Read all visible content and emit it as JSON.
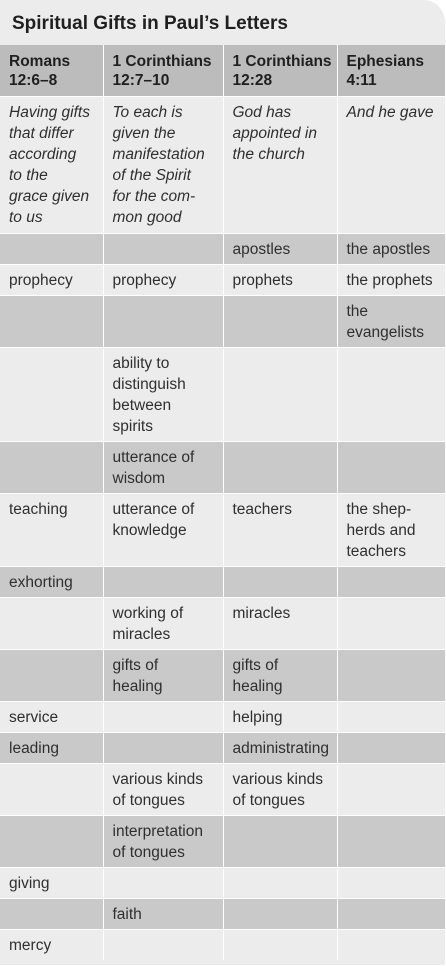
{
  "title": "Spiritual Gifts in Paul’s Letters",
  "headers": [
    [
      "Romans",
      "12:6–8"
    ],
    [
      "1 Corinthians",
      "12:7–10"
    ],
    [
      "1 Corinthians",
      "12:28"
    ],
    [
      "Ephesians",
      "4:11"
    ]
  ],
  "rows": [
    {
      "shade": "light",
      "style": "intro",
      "cells": [
        [
          "Having gifts",
          "that differ",
          "according",
          "to the",
          "grace given",
          "to us"
        ],
        [
          "To each is",
          "given the",
          "manifestation",
          "of the Spirit",
          "for the com-",
          "mon good"
        ],
        [
          "God has",
          "appointed in",
          "the church"
        ],
        [
          "And he gave"
        ]
      ]
    },
    {
      "shade": "dark",
      "cells": [
        [],
        [],
        [
          "apostles"
        ],
        [
          "the apostles"
        ]
      ]
    },
    {
      "shade": "light",
      "cells": [
        [
          "prophecy"
        ],
        [
          "prophecy"
        ],
        [
          "prophets"
        ],
        [
          "the prophets"
        ]
      ]
    },
    {
      "shade": "dark",
      "cells": [
        [],
        [],
        [],
        [
          "the",
          "evangelists"
        ]
      ]
    },
    {
      "shade": "light",
      "cells": [
        [],
        [
          "ability to",
          "distinguish",
          "between",
          "spirits"
        ],
        [],
        []
      ]
    },
    {
      "shade": "dark",
      "cells": [
        [],
        [
          "utterance of",
          "wisdom"
        ],
        [],
        []
      ]
    },
    {
      "shade": "light",
      "cells": [
        [
          "teaching"
        ],
        [
          "utterance of",
          "knowledge"
        ],
        [
          "teachers"
        ],
        [
          "the shep-",
          "herds and",
          "teachers"
        ]
      ]
    },
    {
      "shade": "dark",
      "cells": [
        [
          "exhorting"
        ],
        [],
        [],
        []
      ]
    },
    {
      "shade": "light",
      "cells": [
        [],
        [
          "working of",
          "miracles"
        ],
        [
          "miracles"
        ],
        []
      ]
    },
    {
      "shade": "dark",
      "cells": [
        [],
        [
          "gifts of",
          "healing"
        ],
        [
          "gifts of",
          "healing"
        ],
        []
      ]
    },
    {
      "shade": "light",
      "cells": [
        [
          "service"
        ],
        [],
        [
          "helping"
        ],
        []
      ]
    },
    {
      "shade": "dark",
      "cells": [
        [
          "leading"
        ],
        [],
        [
          "administrating"
        ],
        []
      ]
    },
    {
      "shade": "light",
      "cells": [
        [],
        [
          "various kinds",
          "of tongues"
        ],
        [
          "various kinds",
          "of tongues"
        ],
        []
      ]
    },
    {
      "shade": "dark",
      "cells": [
        [],
        [
          "interpretation",
          "of tongues"
        ],
        [],
        []
      ]
    },
    {
      "shade": "light",
      "cells": [
        [
          "giving"
        ],
        [],
        [],
        []
      ]
    },
    {
      "shade": "dark",
      "cells": [
        [],
        [
          "faith"
        ],
        [],
        []
      ]
    },
    {
      "shade": "light",
      "cells": [
        [
          "mercy"
        ],
        [],
        [],
        []
      ]
    }
  ]
}
